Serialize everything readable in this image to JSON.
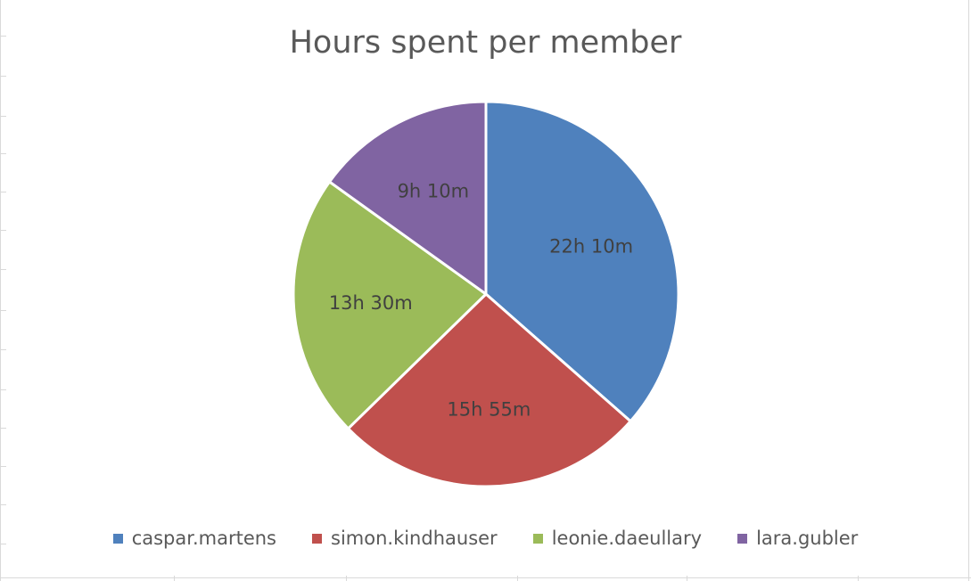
{
  "chart_data": {
    "type": "pie",
    "title": "Hours spent per member",
    "categories": [
      "caspar.martens",
      "simon.kindhauser",
      "leonie.daeullary",
      "lara.gubler"
    ],
    "values": [
      22.1667,
      15.9167,
      13.5,
      9.1667
    ],
    "data_labels": [
      "22h 10m",
      "15h 55m",
      "13h 30m",
      "9h 10m"
    ],
    "colors": [
      "#4f81bd",
      "#c0504d",
      "#9bbb59",
      "#8064a2"
    ],
    "start_angle_deg": 0,
    "direction": "clockwise",
    "legend_position": "bottom"
  },
  "legend": [
    {
      "label": "caspar.martens",
      "color": "#4f81bd"
    },
    {
      "label": "simon.kindhauser",
      "color": "#c0504d"
    },
    {
      "label": "leonie.daeullary",
      "color": "#9bbb59"
    },
    {
      "label": "lara.gubler",
      "color": "#8064a2"
    }
  ]
}
